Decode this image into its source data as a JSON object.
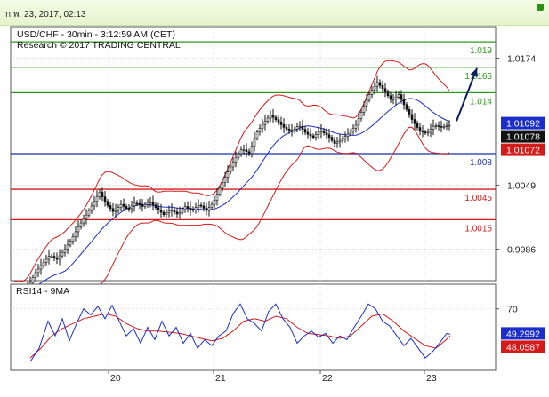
{
  "header": {
    "datetime": "ก.พ. 23, 2017, 02:13"
  },
  "chart_data": {
    "type": "candlestick",
    "symbol_line": "USD/CHF - 30min - 3:12:59 AM (CET)",
    "research_line": "Research © 2017 TRADING CENTRAL",
    "price_axis": {
      "ticks": [
        "1.0174",
        "1.0049",
        "0.9986"
      ],
      "ylim": [
        0.9955,
        1.0205
      ]
    },
    "x_ticks": [
      "20",
      "21",
      "22",
      "23"
    ],
    "levels": [
      {
        "label": "1.019",
        "value": 1.019,
        "color": "#2e9b1f"
      },
      {
        "label": "1.0165",
        "value": 1.0165,
        "color": "#2e9b1f"
      },
      {
        "label": "1.014",
        "value": 1.014,
        "color": "#2e9b1f"
      },
      {
        "label": "1.008",
        "value": 1.008,
        "color": "#1730a8"
      },
      {
        "label": "1.0045",
        "value": 1.0045,
        "color": "#d51a1a"
      },
      {
        "label": "1.0015",
        "value": 1.0015,
        "color": "#d51a1a"
      }
    ],
    "price_boxes": [
      {
        "label": "1.01092",
        "value": 1.01092,
        "bg": "#1b2ec9"
      },
      {
        "label": "1.01078",
        "value": 1.01078,
        "bg": "#111111"
      },
      {
        "label": "1.01072",
        "value": 1.01072,
        "bg": "#d51a1a"
      }
    ],
    "price_path": [
      [
        0,
        0.9945
      ],
      [
        8,
        0.9942
      ],
      [
        16,
        0.995
      ],
      [
        24,
        0.9963
      ],
      [
        32,
        0.9972
      ],
      [
        40,
        0.998
      ],
      [
        48,
        0.9976
      ],
      [
        56,
        0.9985
      ],
      [
        64,
        0.9995
      ],
      [
        72,
        1.0008
      ],
      [
        80,
        1.0018
      ],
      [
        88,
        1.003
      ],
      [
        96,
        1.0042
      ],
      [
        104,
        1.003
      ],
      [
        112,
        1.0022
      ],
      [
        120,
        1.003
      ],
      [
        128,
        1.0025
      ],
      [
        136,
        1.0032
      ],
      [
        144,
        1.0028
      ],
      [
        152,
        1.0033
      ],
      [
        160,
        1.0026
      ],
      [
        168,
        1.002
      ],
      [
        176,
        1.0025
      ],
      [
        184,
        1.002
      ],
      [
        192,
        1.0028
      ],
      [
        200,
        1.0024
      ],
      [
        208,
        1.003
      ],
      [
        216,
        1.0024
      ],
      [
        224,
        1.0032
      ],
      [
        232,
        1.0048
      ],
      [
        240,
        1.0062
      ],
      [
        248,
        1.0075
      ],
      [
        256,
        1.0085
      ],
      [
        264,
        1.008
      ],
      [
        272,
        1.01
      ],
      [
        280,
        1.011
      ],
      [
        288,
        1.0118
      ],
      [
        296,
        1.0112
      ],
      [
        304,
        1.0105
      ],
      [
        312,
        1.0102
      ],
      [
        320,
        1.0108
      ],
      [
        328,
        1.01
      ],
      [
        336,
        1.0096
      ],
      [
        344,
        1.0103
      ],
      [
        352,
        1.0098
      ],
      [
        360,
        1.009
      ],
      [
        368,
        1.0094
      ],
      [
        376,
        1.01
      ],
      [
        384,
        1.0108
      ],
      [
        392,
        1.0125
      ],
      [
        400,
        1.014
      ],
      [
        408,
        1.015
      ],
      [
        416,
        1.0142
      ],
      [
        424,
        1.0132
      ],
      [
        432,
        1.0138
      ],
      [
        440,
        1.0125
      ],
      [
        448,
        1.0112
      ],
      [
        456,
        1.0102
      ],
      [
        464,
        1.01
      ],
      [
        472,
        1.0108
      ],
      [
        480,
        1.0106
      ],
      [
        488,
        1.0108
      ],
      [
        490,
        1.01078
      ]
    ],
    "forecast_arrow": {
      "from": [
        497,
        1.0112
      ],
      "to": [
        520,
        1.0164
      ]
    },
    "rsi": {
      "title": "RSI14 - 9MA",
      "tick": "70",
      "ylim": [
        20,
        90
      ],
      "boxes": [
        {
          "label": "49.2992",
          "value": 49.3,
          "bg": "#1b2ec9"
        },
        {
          "label": "48.0587",
          "value": 48.06,
          "bg": "#d51a1a"
        }
      ],
      "rsi_path": [
        [
          18,
          27
        ],
        [
          28,
          38
        ],
        [
          38,
          60
        ],
        [
          46,
          48
        ],
        [
          54,
          62
        ],
        [
          62,
          44
        ],
        [
          70,
          58
        ],
        [
          78,
          70
        ],
        [
          86,
          65
        ],
        [
          94,
          72
        ],
        [
          102,
          62
        ],
        [
          110,
          73
        ],
        [
          118,
          60
        ],
        [
          126,
          48
        ],
        [
          134,
          54
        ],
        [
          142,
          42
        ],
        [
          150,
          55
        ],
        [
          158,
          45
        ],
        [
          166,
          60
        ],
        [
          174,
          48
        ],
        [
          182,
          55
        ],
        [
          190,
          42
        ],
        [
          198,
          50
        ],
        [
          206,
          38
        ],
        [
          214,
          45
        ],
        [
          222,
          40
        ],
        [
          230,
          48
        ],
        [
          238,
          52
        ],
        [
          246,
          66
        ],
        [
          254,
          74
        ],
        [
          262,
          62
        ],
        [
          270,
          58
        ],
        [
          278,
          52
        ],
        [
          286,
          68
        ],
        [
          294,
          74
        ],
        [
          302,
          62
        ],
        [
          310,
          55
        ],
        [
          318,
          42
        ],
        [
          326,
          48
        ],
        [
          334,
          52
        ],
        [
          342,
          47
        ],
        [
          350,
          50
        ],
        [
          358,
          42
        ],
        [
          366,
          48
        ],
        [
          374,
          45
        ],
        [
          382,
          55
        ],
        [
          390,
          64
        ],
        [
          398,
          74
        ],
        [
          406,
          70
        ],
        [
          414,
          60
        ],
        [
          422,
          56
        ],
        [
          430,
          48
        ],
        [
          438,
          40
        ],
        [
          446,
          46
        ],
        [
          454,
          38
        ],
        [
          462,
          30
        ],
        [
          470,
          35
        ],
        [
          478,
          42
        ],
        [
          486,
          50
        ],
        [
          490,
          49.3
        ]
      ],
      "ma_path": [
        [
          18,
          30
        ],
        [
          30,
          38
        ],
        [
          42,
          48
        ],
        [
          54,
          54
        ],
        [
          66,
          58
        ],
        [
          78,
          62
        ],
        [
          90,
          64
        ],
        [
          102,
          66
        ],
        [
          114,
          64
        ],
        [
          126,
          58
        ],
        [
          138,
          54
        ],
        [
          150,
          52
        ],
        [
          162,
          52
        ],
        [
          174,
          51
        ],
        [
          186,
          50
        ],
        [
          198,
          48
        ],
        [
          210,
          46
        ],
        [
          222,
          44
        ],
        [
          234,
          46
        ],
        [
          246,
          52
        ],
        [
          258,
          60
        ],
        [
          270,
          62
        ],
        [
          282,
          60
        ],
        [
          294,
          64
        ],
        [
          306,
          62
        ],
        [
          318,
          55
        ],
        [
          330,
          50
        ],
        [
          342,
          49
        ],
        [
          354,
          48
        ],
        [
          366,
          46
        ],
        [
          378,
          48
        ],
        [
          390,
          56
        ],
        [
          402,
          64
        ],
        [
          414,
          66
        ],
        [
          426,
          60
        ],
        [
          438,
          52
        ],
        [
          450,
          46
        ],
        [
          462,
          40
        ],
        [
          474,
          38
        ],
        [
          484,
          44
        ],
        [
          490,
          48.06
        ]
      ]
    }
  }
}
